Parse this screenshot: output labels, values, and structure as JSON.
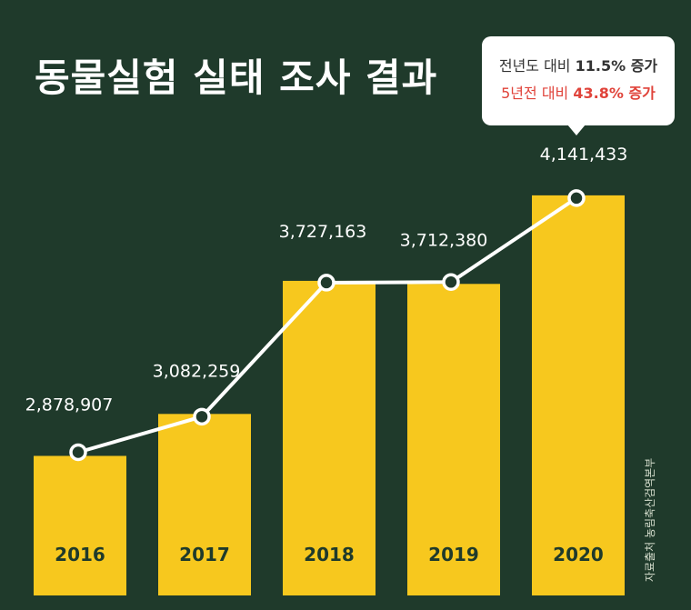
{
  "title": "동물실험 실태 조사 결과",
  "callout": {
    "line1_prefix": "전년도 대비 ",
    "line1_value": "11.5%",
    "line1_suffix": " 증가",
    "line2_prefix": "5년전 대비 ",
    "line2_value": "43.8%",
    "line2_suffix": " 증가"
  },
  "source": "자료출처 농림축산검역본부",
  "colors": {
    "background": "#1f3a2b",
    "bar": "#f7c81e",
    "line": "#ffffff",
    "highlight_red": "#e0433a"
  },
  "chart_data": {
    "type": "bar",
    "title": "동물실험 실태 조사 결과",
    "categories": [
      "2016",
      "2017",
      "2018",
      "2019",
      "2020"
    ],
    "values": [
      2878907,
      3082259,
      3727163,
      3712380,
      4141433
    ],
    "value_labels": [
      "2,878,907",
      "3,082,259",
      "3,727,163",
      "3,712,380",
      "4,141,433"
    ],
    "overlay": "line",
    "xlabel": "",
    "ylabel": "",
    "grid": false,
    "legend": "none"
  }
}
